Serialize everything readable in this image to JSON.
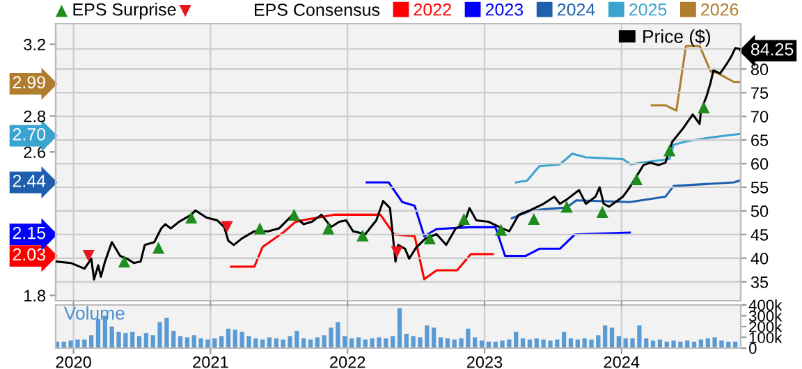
{
  "chart_data": [
    {
      "type": "line",
      "xlim": [
        2019.87,
        2024.87
      ],
      "xticks": [
        2020,
        2021,
        2022,
        2023,
        2024
      ],
      "ylim": [
        1.77,
        3.315
      ],
      "yticks": [
        1.8,
        2.03,
        2.15,
        2.44,
        2.6,
        {
          "value": 2.7,
          "label": "2.70"
        },
        2.8,
        2.99,
        3.2
      ],
      "y2lim": [
        31,
        89.6
      ],
      "y2ticks": [
        35,
        40,
        45,
        50,
        55,
        60,
        65,
        70,
        75,
        80,
        84.25
      ],
      "tick_labels": "y",
      "grid": true,
      "legend": "top",
      "legend_title": "EPS Consensus",
      "series": [
        {
          "name": "2022",
          "color": "#ff0000",
          "x": [
            2021.15,
            2021.32,
            2021.38,
            2021.53,
            2021.62,
            2021.68,
            2021.91,
            2022.24,
            2022.34,
            2022.49,
            2022.56,
            2022.65,
            2022.8,
            2022.9,
            2023.06
          ],
          "values": [
            1.96,
            1.96,
            2.07,
            2.15,
            2.21,
            2.22,
            2.25,
            2.25,
            2.14,
            2.13,
            1.89,
            1.94,
            1.94,
            2.03,
            2.03
          ]
        },
        {
          "name": "2023",
          "color": "#0000ff",
          "x": [
            2022.14,
            2022.3,
            2022.4,
            2022.49,
            2022.56,
            2022.65,
            2022.89,
            2023.08,
            2023.15,
            2023.3,
            2023.4,
            2023.55,
            2023.66,
            2024.06
          ],
          "values": [
            2.43,
            2.43,
            2.32,
            2.3,
            2.13,
            2.17,
            2.18,
            2.18,
            2.02,
            2.02,
            2.06,
            2.06,
            2.14,
            2.15
          ]
        },
        {
          "name": "2024",
          "color": "#1f5fae",
          "x": [
            2023.2,
            2023.33,
            2023.43,
            2023.6,
            2023.67,
            2024.06,
            2024.32,
            2024.38,
            2024.82,
            2024.86
          ],
          "values": [
            2.23,
            2.27,
            2.28,
            2.29,
            2.33,
            2.32,
            2.35,
            2.41,
            2.43,
            2.44
          ]
        },
        {
          "name": "2025",
          "color": "#3ba3d0",
          "x": [
            2023.23,
            2023.31,
            2023.4,
            2023.55,
            2023.64,
            2023.74,
            2024.01,
            2024.07,
            2024.14,
            2024.35,
            2024.38,
            2024.48,
            2024.65,
            2024.86
          ],
          "values": [
            2.43,
            2.44,
            2.52,
            2.53,
            2.59,
            2.57,
            2.56,
            2.53,
            2.54,
            2.56,
            2.64,
            2.66,
            2.68,
            2.7
          ]
        },
        {
          "name": "2026",
          "color": "#b07d2e",
          "x": [
            2024.22,
            2024.32,
            2024.4,
            2024.47,
            2024.57,
            2024.65,
            2024.7,
            2024.82,
            2024.86
          ],
          "values": [
            2.86,
            2.86,
            2.83,
            3.19,
            3.19,
            3.05,
            3.04,
            2.99,
            2.99
          ]
        },
        {
          "name": "Price ($)",
          "color": "#000000",
          "axis": "y2",
          "x": [
            2019.87,
            2019.98,
            2020.08,
            2020.13,
            2020.15,
            2020.18,
            2020.2,
            2020.23,
            2020.28,
            2020.34,
            2020.39,
            2020.44,
            2020.49,
            2020.52,
            2020.59,
            2020.64,
            2020.67,
            2020.71,
            2020.77,
            2020.86,
            2020.89,
            2020.97,
            2021.05,
            2021.1,
            2021.13,
            2021.17,
            2021.23,
            2021.32,
            2021.42,
            2021.5,
            2021.6,
            2021.68,
            2021.74,
            2021.81,
            2021.88,
            2021.94,
            2021.99,
            2022.04,
            2022.13,
            2022.21,
            2022.26,
            2022.31,
            2022.35,
            2022.37,
            2022.42,
            2022.45,
            2022.5,
            2022.57,
            2022.65,
            2022.72,
            2022.79,
            2022.85,
            2022.89,
            2022.94,
            2023.03,
            2023.13,
            2023.18,
            2023.25,
            2023.33,
            2023.43,
            2023.51,
            2023.55,
            2023.6,
            2023.69,
            2023.74,
            2023.81,
            2023.84,
            2023.87,
            2023.91,
            2024.01,
            2024.06,
            2024.16,
            2024.21,
            2024.27,
            2024.32,
            2024.37,
            2024.45,
            2024.52,
            2024.57,
            2024.58,
            2024.62,
            2024.65,
            2024.67,
            2024.72,
            2024.77,
            2024.8,
            2024.83,
            2024.86
          ],
          "values": [
            39.3,
            39.0,
            37.8,
            39.9,
            35.5,
            38.5,
            36.1,
            39.3,
            43.4,
            40.5,
            39.9,
            39.0,
            39.3,
            42.8,
            43.4,
            46.3,
            47.2,
            46.3,
            47.7,
            49.2,
            50.1,
            48.6,
            48.0,
            46.6,
            43.7,
            42.8,
            44.2,
            45.7,
            45.7,
            46.3,
            49.2,
            47.2,
            47.7,
            49.2,
            46.6,
            47.7,
            48.0,
            45.7,
            45.1,
            48.0,
            52.1,
            50.6,
            39.3,
            42.8,
            42.0,
            39.9,
            42.2,
            44.2,
            45.1,
            42.8,
            46.3,
            47.2,
            50.6,
            48.0,
            47.7,
            46.3,
            45.7,
            49.2,
            50.1,
            51.5,
            53.0,
            51.5,
            52.4,
            54.4,
            51.5,
            53.0,
            55.0,
            51.5,
            50.9,
            53.0,
            55.0,
            59.7,
            60.2,
            59.7,
            60.2,
            64.6,
            67.5,
            70.4,
            68.4,
            71.3,
            74.2,
            77.1,
            79.7,
            79.1,
            81.2,
            82.6,
            84.4,
            84.25
          ]
        },
        {
          "name": "EPS Surprise",
          "type": "scatter",
          "marker": "triangle",
          "color": "#1e8c1e",
          "axis": "y2",
          "x": [
            2020.37,
            2020.62,
            2020.86,
            2021.36,
            2021.61,
            2021.86,
            2022.11,
            2022.6,
            2022.85,
            2023.12,
            2023.36,
            2023.6,
            2023.86,
            2024.11,
            2024.35,
            2024.6
          ],
          "values": [
            39.3,
            42.2,
            48.6,
            46.3,
            49.2,
            46.3,
            44.8,
            44.2,
            48.3,
            46.0,
            48.3,
            50.9,
            49.8,
            56.7,
            62.8,
            71.9
          ]
        },
        {
          "type": "scatter",
          "marker": "triangle_down",
          "color": "#e8141e",
          "axis": "y2",
          "x": [
            2020.11,
            2021.12,
            2022.36
          ],
          "values": [
            40.5,
            46.6,
            41.3
          ]
        }
      ]
    },
    {
      "type": "bar",
      "title": "Volume",
      "color": "#5b9bd5",
      "xlim": [
        2019.87,
        2024.87
      ],
      "xticks": [
        2020,
        2021,
        2022,
        2023,
        2024
      ],
      "ylim": [
        0,
        400000
      ],
      "yticks": [
        0,
        {
          "value": 100000,
          "label": "100k"
        },
        {
          "value": 200000,
          "label": "200k"
        },
        {
          "value": 300000,
          "label": "300k"
        },
        {
          "value": 400000,
          "label": "400k"
        }
      ],
      "grid": "x",
      "x": [
        2019.88,
        2019.93,
        2019.98,
        2020.03,
        2020.08,
        2020.13,
        2020.18,
        2020.23,
        2020.28,
        2020.33,
        2020.38,
        2020.43,
        2020.48,
        2020.53,
        2020.58,
        2020.63,
        2020.68,
        2020.73,
        2020.78,
        2020.83,
        2020.88,
        2020.93,
        2020.98,
        2021.03,
        2021.08,
        2021.13,
        2021.18,
        2021.23,
        2021.28,
        2021.33,
        2021.38,
        2021.43,
        2021.48,
        2021.53,
        2021.58,
        2021.63,
        2021.68,
        2021.73,
        2021.78,
        2021.83,
        2021.88,
        2021.93,
        2021.98,
        2022.03,
        2022.08,
        2022.13,
        2022.18,
        2022.23,
        2022.28,
        2022.33,
        2022.38,
        2022.43,
        2022.48,
        2022.53,
        2022.58,
        2022.63,
        2022.68,
        2022.73,
        2022.78,
        2022.83,
        2022.88,
        2022.93,
        2022.98,
        2023.03,
        2023.08,
        2023.13,
        2023.18,
        2023.23,
        2023.28,
        2023.33,
        2023.38,
        2023.43,
        2023.48,
        2023.53,
        2023.58,
        2023.63,
        2023.68,
        2023.73,
        2023.78,
        2023.83,
        2023.88,
        2023.93,
        2023.98,
        2024.03,
        2024.08,
        2024.13,
        2024.18,
        2024.23,
        2024.28,
        2024.33,
        2024.38,
        2024.43,
        2024.48,
        2024.53,
        2024.58,
        2024.63,
        2024.68,
        2024.73,
        2024.78,
        2024.83
      ],
      "values": [
        60000,
        60000,
        70000,
        80000,
        80000,
        120000,
        270000,
        300000,
        200000,
        150000,
        140000,
        150000,
        110000,
        140000,
        120000,
        240000,
        280000,
        160000,
        110000,
        100000,
        120000,
        90000,
        80000,
        90000,
        110000,
        180000,
        170000,
        150000,
        110000,
        90000,
        80000,
        100000,
        90000,
        80000,
        110000,
        160000,
        90000,
        80000,
        100000,
        120000,
        190000,
        240000,
        110000,
        90000,
        100000,
        80000,
        90000,
        100000,
        90000,
        110000,
        370000,
        130000,
        110000,
        100000,
        210000,
        190000,
        100000,
        90000,
        80000,
        90000,
        180000,
        100000,
        70000,
        60000,
        60000,
        70000,
        80000,
        150000,
        90000,
        80000,
        90000,
        80000,
        70000,
        80000,
        150000,
        90000,
        80000,
        90000,
        80000,
        120000,
        210000,
        190000,
        110000,
        90000,
        90000,
        210000,
        90000,
        70000,
        80000,
        60000,
        70000,
        60000,
        70000,
        60000,
        80000,
        90000,
        100000,
        70000,
        60000,
        60000
      ]
    }
  ]
}
